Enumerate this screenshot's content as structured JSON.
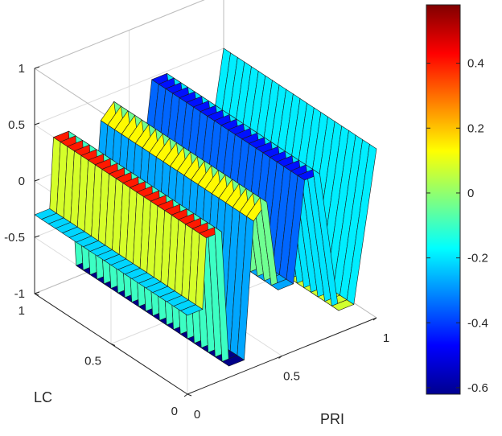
{
  "chart_data": {
    "type": "surface",
    "title": "",
    "xlabel": "PRI",
    "ylabel": "LC",
    "zlabel": "",
    "xlim": [
      0,
      1
    ],
    "ylim": [
      0,
      1
    ],
    "zlim": [
      -1,
      1
    ],
    "clim": [
      -0.62,
      0.58
    ],
    "x_ticks": [
      "0",
      "0.5",
      "1"
    ],
    "y_ticks": [
      "0",
      "0.5",
      "1"
    ],
    "z_ticks": [
      "-1",
      "-0.5",
      "0",
      "0.5",
      "1"
    ],
    "colorbar_ticks": [
      "-0.6",
      "-0.4",
      "-0.2",
      "0",
      "0.2",
      "0.4"
    ],
    "colormap": "jet",
    "grid": true,
    "pri_profile": {
      "x": [
        0.0,
        0.08,
        0.1,
        0.18,
        0.22,
        0.3,
        0.35,
        0.42,
        0.48,
        0.56,
        0.62,
        0.7,
        0.8,
        0.88,
        1.0
      ],
      "height": [
        -0.3,
        -0.3,
        0.32,
        0.32,
        -0.9,
        -0.9,
        0.3,
        0.42,
        -0.4,
        -0.4,
        0.48,
        0.48,
        -0.8,
        -0.8,
        0.5
      ],
      "color": [
        -0.22,
        -0.22,
        0.38,
        0.42,
        -0.62,
        -0.6,
        0.05,
        0.22,
        -0.3,
        -0.25,
        -0.45,
        -0.45,
        0.05,
        0.1,
        -0.48
      ]
    }
  }
}
